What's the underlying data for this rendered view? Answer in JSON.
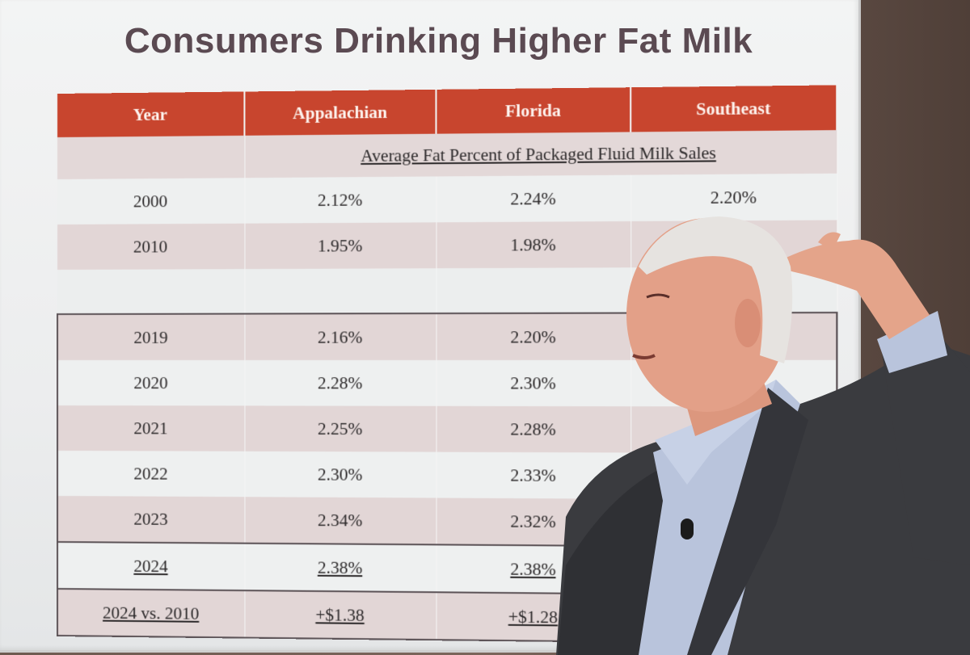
{
  "slide": {
    "title": "Consumers Drinking Higher Fat Milk",
    "subtitle": "Average Fat Percent of Packaged Fluid Milk Sales",
    "headers": [
      "Year",
      "Appalachian",
      "Florida",
      "Southeast"
    ],
    "rows": [
      {
        "year": "2000",
        "appalachian": "2.12%",
        "florida": "2.24%",
        "southeast": "2.20%"
      },
      {
        "year": "2010",
        "appalachian": "1.95%",
        "florida": "1.98%",
        "southeast": ""
      },
      {
        "year": "2019",
        "appalachian": "2.16%",
        "florida": "2.20%",
        "southeast": ""
      },
      {
        "year": "2020",
        "appalachian": "2.28%",
        "florida": "2.30%",
        "southeast": ""
      },
      {
        "year": "2021",
        "appalachian": "2.25%",
        "florida": "2.28%",
        "southeast": ""
      },
      {
        "year": "2022",
        "appalachian": "2.30%",
        "florida": "2.33%",
        "southeast": ""
      },
      {
        "year": "2023",
        "appalachian": "2.34%",
        "florida": "2.32%",
        "southeast": ""
      },
      {
        "year": "2024",
        "appalachian": "2.38%",
        "florida": "2.38%",
        "southeast": ""
      },
      {
        "year": "2024 vs. 2010",
        "appalachian": "+$1.38",
        "florida": "+$1.28",
        "southeast": ""
      }
    ]
  },
  "colors": {
    "header_bg": "#c8452e",
    "title_text": "#5b4a52",
    "shaded_row": "#e2d6d6",
    "light_row": "#eef0f0"
  }
}
